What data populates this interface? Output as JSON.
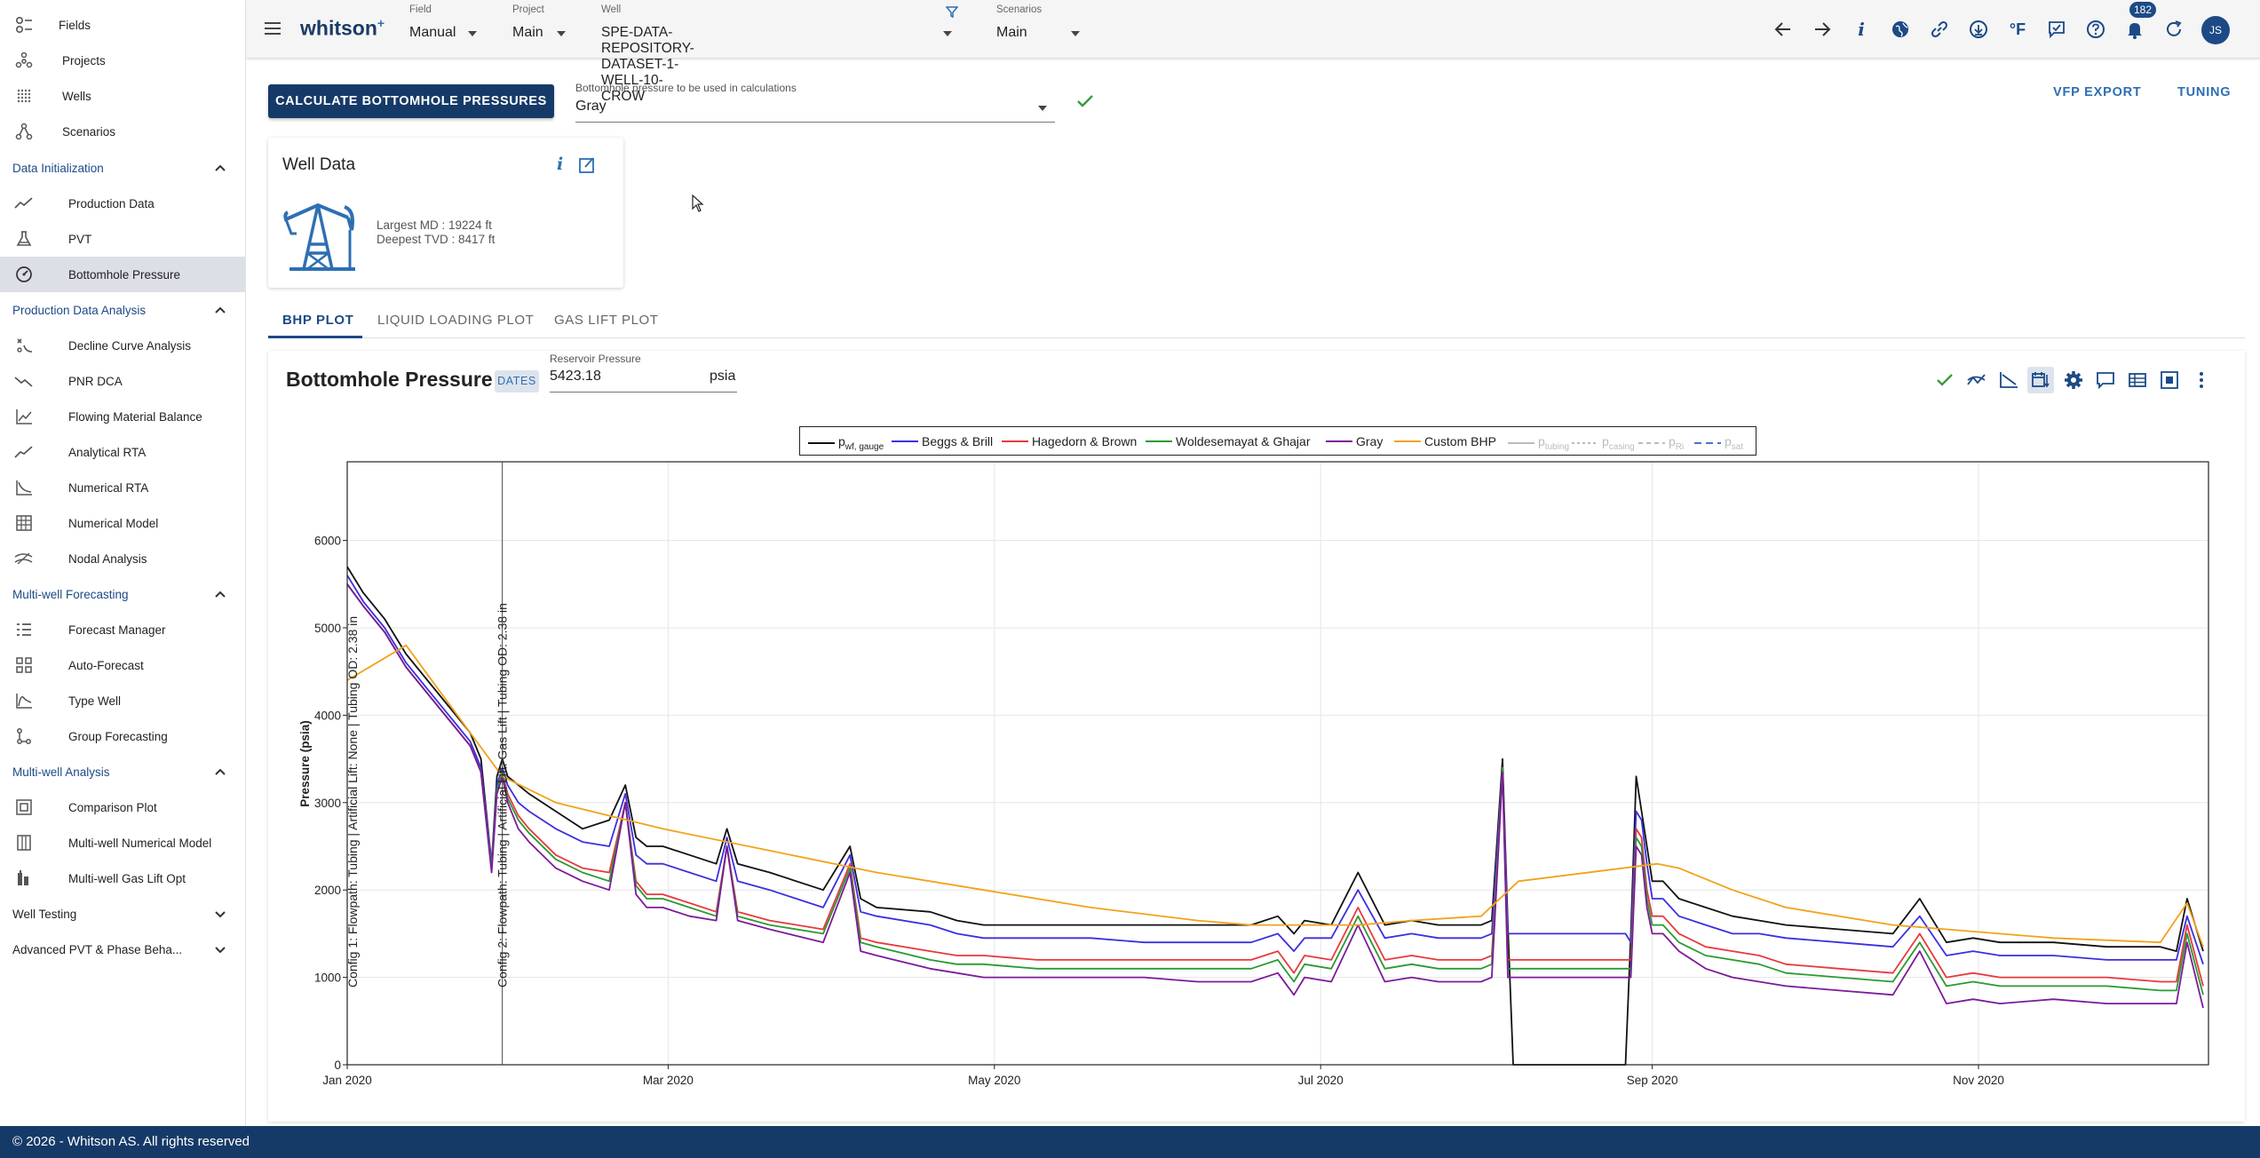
{
  "sidebar": {
    "top_items": [
      {
        "label": "Fields",
        "icon": "fields-icon"
      },
      {
        "label": "Projects",
        "icon": "projects-icon"
      },
      {
        "label": "Wells",
        "icon": "wells-icon"
      },
      {
        "label": "Scenarios",
        "icon": "scenarios-icon"
      }
    ],
    "sections": [
      {
        "title": "Data Initialization",
        "expanded": true,
        "items": [
          {
            "label": "Production Data",
            "icon": "production-data-icon"
          },
          {
            "label": "PVT",
            "icon": "pvt-flask-icon"
          },
          {
            "label": "Bottomhole Pressure",
            "icon": "gauge-icon",
            "active": true
          }
        ]
      },
      {
        "title": "Production Data Analysis",
        "expanded": true,
        "items": [
          {
            "label": "Decline Curve Analysis",
            "icon": "decline-curve-icon"
          },
          {
            "label": "PNR DCA",
            "icon": "pnr-dca-icon"
          },
          {
            "label": "Flowing Material Balance",
            "icon": "material-balance-icon"
          },
          {
            "label": "Analytical RTA",
            "icon": "analytical-rta-icon"
          },
          {
            "label": "Numerical RTA",
            "icon": "numerical-rta-icon"
          },
          {
            "label": "Numerical Model",
            "icon": "numerical-model-icon"
          },
          {
            "label": "Nodal Analysis",
            "icon": "nodal-analysis-icon"
          }
        ]
      },
      {
        "title": "Multi-well Forecasting",
        "expanded": true,
        "items": [
          {
            "label": "Forecast Manager",
            "icon": "forecast-manager-icon"
          },
          {
            "label": "Auto-Forecast",
            "icon": "auto-forecast-icon"
          },
          {
            "label": "Type Well",
            "icon": "type-well-icon"
          },
          {
            "label": "Group Forecasting",
            "icon": "group-forecasting-icon"
          }
        ]
      },
      {
        "title": "Multi-well Analysis",
        "expanded": true,
        "items": [
          {
            "label": "Comparison Plot",
            "icon": "comparison-plot-icon"
          },
          {
            "label": "Multi-well Numerical Model",
            "icon": "multiwell-model-icon"
          },
          {
            "label": "Multi-well Gas Lift Opt",
            "icon": "gas-lift-opt-icon"
          }
        ]
      },
      {
        "title": "Well Testing",
        "expanded": false,
        "items": []
      },
      {
        "title": "Advanced PVT & Phase Beha...",
        "expanded": false,
        "items": []
      }
    ]
  },
  "topbar": {
    "logo": "whitson",
    "logo_sup": "+",
    "field_label": "Field",
    "field_value": "Manual",
    "project_label": "Project",
    "project_value": "Main",
    "well_label": "Well",
    "well_value": "SPE-DATA-REPOSITORY-DATASET-1-WELL-10-CROW",
    "scenarios_label": "Scenarios",
    "scenarios_value": "Main",
    "notification_count": "182",
    "avatar_initials": "JS",
    "temperature_unit": "°F"
  },
  "actions": {
    "calculate_label": "CALCULATE BOTTOMHOLE PRESSURES",
    "bhp_select_label": "Bottomhole pressure to be used in calculations",
    "bhp_select_value": "Gray",
    "vfp_export": "VFP EXPORT",
    "tuning": "TUNING"
  },
  "well_card": {
    "title": "Well Data",
    "largest_md": "Largest MD :  19224 ft",
    "deepest_tvd": "Deepest TVD :  8417 ft"
  },
  "tabs": [
    "BHP PLOT",
    "LIQUID LOADING PLOT",
    "GAS LIFT PLOT"
  ],
  "plot_header": {
    "title": "Bottomhole Pressure",
    "dates_badge": "DATES",
    "reservoir_label": "Reservoir Pressure",
    "reservoir_value": "5423.18",
    "reservoir_unit": "psia"
  },
  "footer": "© 2026 - Whitson AS. All rights reserved",
  "chart_data": {
    "type": "line",
    "ylabel": "Pressure (psia)",
    "ylim": [
      0,
      6900
    ],
    "yticks": [
      0,
      1000,
      2000,
      3000,
      4000,
      5000,
      6000
    ],
    "x_start": "2020-01-01",
    "x_end": "2020-12-14",
    "xticks": [
      {
        "date": "2020-01-01",
        "label": "Jan 2020"
      },
      {
        "date": "2020-03-01",
        "label": "Mar 2020"
      },
      {
        "date": "2020-05-01",
        "label": "May 2020"
      },
      {
        "date": "2020-07-01",
        "label": "Jul 2020"
      },
      {
        "date": "2020-09-01",
        "label": "Sep 2020"
      },
      {
        "date": "2020-11-01",
        "label": "Nov 2020"
      }
    ],
    "grid": true,
    "legend_position": "top",
    "legend": [
      {
        "name": "pwf, gauge",
        "sub": "wf, gauge",
        "color": "#111111",
        "dash": ""
      },
      {
        "name": "Beggs & Brill",
        "color": "#3b2fe0",
        "dash": ""
      },
      {
        "name": "Hagedorn & Brown",
        "color": "#e8393d",
        "dash": ""
      },
      {
        "name": "Woldesemayat & Ghajar",
        "color": "#2a9a33",
        "dash": ""
      },
      {
        "name": "Gray",
        "color": "#7d1a9b",
        "dash": ""
      },
      {
        "name": "Custom BHP",
        "color": "#f2a21a",
        "dash": ""
      },
      {
        "name": "ptubing",
        "sub": "tubing",
        "color": "#bbbbbb",
        "dash": "",
        "faded": true
      },
      {
        "name": "pcasing",
        "sub": "casing",
        "color": "#bbbbbb",
        "dash": "3,3",
        "faded": true
      },
      {
        "name": "pRi",
        "sub": "Ri",
        "color": "#bbbbbb",
        "dash": "5,4",
        "faded": true
      },
      {
        "name": "psat",
        "sub": "sat",
        "color": "#4a76c7",
        "dash": "8,5",
        "faded": true
      }
    ],
    "annotations": [
      {
        "date": "2020-01-02",
        "text": "Config 1: Flowpath: Tubing | Artificial Lift: None | Tubing OD: 2.38 in"
      },
      {
        "date": "2020-01-30",
        "text": "Config 2: Flowpath: Tubing | Artificial Lift: Gas Lift | Tubing OD: 2.38 in"
      }
    ],
    "series": [
      {
        "name": "pwf, gauge",
        "color": "#111111",
        "x": [
          1,
          4,
          8,
          12,
          16,
          20,
          24,
          26,
          28,
          29,
          30,
          31,
          33,
          35,
          40,
          45,
          50,
          53,
          55,
          57,
          60,
          65,
          70,
          72,
          74,
          80,
          90,
          95,
          97,
          100,
          110,
          115,
          120,
          130,
          140,
          150,
          160,
          170,
          175,
          178,
          180,
          185,
          190,
          195,
          200,
          205,
          210,
          213,
          215,
          217,
          218,
          219,
          220,
          221,
          240,
          241,
          242,
          243,
          244,
          245,
          247,
          250,
          255,
          260,
          265,
          270,
          280,
          290,
          295,
          300,
          305,
          310,
          320,
          330,
          340,
          343,
          345,
          348
        ],
        "y": [
          5700,
          5400,
          5100,
          4700,
          4400,
          4100,
          3800,
          3500,
          2300,
          3300,
          3500,
          3300,
          3200,
          3100,
          2900,
          2700,
          2800,
          3200,
          2600,
          2500,
          2500,
          2400,
          2300,
          2700,
          2300,
          2200,
          2000,
          2500,
          1900,
          1800,
          1750,
          1650,
          1600,
          1600,
          1600,
          1600,
          1600,
          1600,
          1700,
          1500,
          1650,
          1600,
          2200,
          1600,
          1650,
          1600,
          1600,
          1600,
          1650,
          3500,
          1600,
          0,
          0,
          0,
          0,
          1500,
          3300,
          2900,
          2500,
          2100,
          2100,
          1900,
          1800,
          1700,
          1650,
          1600,
          1550,
          1500,
          1900,
          1400,
          1450,
          1400,
          1400,
          1350,
          1350,
          1300,
          1900,
          1300
        ]
      },
      {
        "name": "Beggs & Brill",
        "color": "#3b2fe0",
        "x": [
          1,
          4,
          8,
          12,
          16,
          20,
          24,
          26,
          28,
          29,
          30,
          31,
          33,
          35,
          40,
          45,
          50,
          53,
          55,
          57,
          60,
          65,
          70,
          72,
          74,
          80,
          90,
          95,
          97,
          100,
          110,
          115,
          120,
          130,
          140,
          150,
          160,
          170,
          175,
          178,
          180,
          185,
          190,
          195,
          200,
          205,
          210,
          213,
          215,
          217,
          218,
          219,
          220,
          240,
          241,
          242,
          243,
          244,
          245,
          247,
          250,
          255,
          260,
          265,
          270,
          280,
          290,
          295,
          300,
          305,
          310,
          320,
          330,
          340,
          343,
          345,
          348
        ],
        "y": [
          5600,
          5300,
          5000,
          4600,
          4300,
          4000,
          3700,
          3400,
          2300,
          3200,
          3400,
          3200,
          3000,
          2900,
          2700,
          2550,
          2500,
          3100,
          2400,
          2300,
          2300,
          2200,
          2100,
          2600,
          2100,
          2000,
          1800,
          2400,
          1750,
          1700,
          1600,
          1500,
          1450,
          1450,
          1450,
          1400,
          1400,
          1400,
          1500,
          1300,
          1450,
          1450,
          2000,
          1450,
          1500,
          1450,
          1450,
          1450,
          1500,
          3400,
          1500,
          1500,
          1500,
          1500,
          1400,
          2900,
          2800,
          2300,
          1900,
          1900,
          1700,
          1600,
          1500,
          1500,
          1450,
          1400,
          1350,
          1700,
          1250,
          1300,
          1250,
          1250,
          1200,
          1200,
          1200,
          1700,
          1150
        ]
      },
      {
        "name": "Hagedorn & Brown",
        "color": "#e8393d",
        "x": [
          1,
          4,
          8,
          12,
          16,
          20,
          24,
          26,
          28,
          29,
          30,
          31,
          33,
          35,
          40,
          45,
          50,
          53,
          55,
          57,
          60,
          65,
          70,
          72,
          74,
          80,
          90,
          95,
          97,
          100,
          110,
          115,
          120,
          130,
          140,
          150,
          160,
          170,
          175,
          178,
          180,
          185,
          190,
          195,
          200,
          205,
          210,
          213,
          215,
          217,
          218,
          219,
          220,
          240,
          241,
          242,
          243,
          244,
          245,
          247,
          250,
          255,
          260,
          265,
          270,
          280,
          290,
          295,
          300,
          305,
          310,
          320,
          330,
          340,
          343,
          345,
          348
        ],
        "y": [
          5500,
          5250,
          4950,
          4550,
          4250,
          3950,
          3650,
          3350,
          2250,
          3150,
          3350,
          3100,
          2850,
          2700,
          2400,
          2250,
          2200,
          3000,
          2100,
          1950,
          1950,
          1850,
          1750,
          2500,
          1750,
          1650,
          1550,
          2300,
          1450,
          1400,
          1300,
          1250,
          1250,
          1200,
          1200,
          1200,
          1200,
          1200,
          1300,
          1050,
          1250,
          1200,
          1800,
          1200,
          1250,
          1200,
          1200,
          1200,
          1250,
          3400,
          1200,
          1200,
          1200,
          1200,
          1200,
          2700,
          2600,
          2000,
          1700,
          1700,
          1500,
          1350,
          1300,
          1250,
          1150,
          1100,
          1050,
          1500,
          1000,
          1050,
          1000,
          1000,
          1000,
          950,
          950,
          1600,
          900
        ]
      },
      {
        "name": "Woldesemayat & Ghajar",
        "color": "#2a9a33",
        "x": [
          1,
          4,
          8,
          12,
          16,
          20,
          24,
          26,
          28,
          29,
          30,
          31,
          33,
          35,
          40,
          45,
          50,
          53,
          55,
          57,
          60,
          65,
          70,
          72,
          74,
          80,
          90,
          95,
          97,
          100,
          110,
          115,
          120,
          130,
          140,
          150,
          160,
          170,
          175,
          178,
          180,
          185,
          190,
          195,
          200,
          205,
          210,
          213,
          215,
          217,
          218,
          219,
          220,
          240,
          241,
          242,
          243,
          244,
          245,
          247,
          250,
          255,
          260,
          265,
          270,
          280,
          290,
          295,
          300,
          305,
          310,
          320,
          330,
          340,
          343,
          345,
          348
        ],
        "y": [
          5500,
          5250,
          4950,
          4550,
          4250,
          3950,
          3650,
          3350,
          2250,
          3150,
          3350,
          3050,
          2800,
          2650,
          2350,
          2200,
          2100,
          3000,
          2050,
          1900,
          1900,
          1800,
          1700,
          2500,
          1700,
          1600,
          1500,
          2250,
          1400,
          1350,
          1200,
          1150,
          1150,
          1100,
          1100,
          1100,
          1100,
          1100,
          1200,
          950,
          1150,
          1100,
          1700,
          1100,
          1150,
          1100,
          1100,
          1100,
          1150,
          3400,
          1100,
          1100,
          1100,
          1100,
          1100,
          2600,
          2500,
          1900,
          1600,
          1600,
          1400,
          1250,
          1200,
          1150,
          1050,
          1000,
          950,
          1400,
          900,
          950,
          900,
          900,
          900,
          850,
          850,
          1500,
          800
        ]
      },
      {
        "name": "Gray",
        "color": "#7d1a9b",
        "x": [
          1,
          4,
          8,
          12,
          16,
          20,
          24,
          26,
          28,
          29,
          30,
          31,
          33,
          35,
          40,
          45,
          50,
          53,
          55,
          57,
          60,
          65,
          70,
          72,
          74,
          80,
          90,
          95,
          97,
          100,
          110,
          115,
          120,
          130,
          140,
          150,
          160,
          170,
          175,
          178,
          180,
          185,
          190,
          195,
          200,
          205,
          210,
          213,
          215,
          217,
          218,
          219,
          220,
          240,
          241,
          242,
          243,
          244,
          245,
          247,
          250,
          255,
          260,
          265,
          270,
          280,
          290,
          295,
          300,
          305,
          310,
          320,
          330,
          340,
          343,
          345,
          348
        ],
        "y": [
          5500,
          5250,
          4950,
          4550,
          4250,
          3950,
          3650,
          3350,
          2200,
          3100,
          3300,
          3000,
          2700,
          2550,
          2250,
          2100,
          2000,
          3000,
          1950,
          1800,
          1800,
          1700,
          1650,
          2500,
          1650,
          1550,
          1400,
          2200,
          1300,
          1250,
          1100,
          1050,
          1000,
          1000,
          1000,
          1000,
          950,
          950,
          1050,
          800,
          1000,
          950,
          1600,
          950,
          1000,
          950,
          950,
          950,
          1000,
          3350,
          1000,
          1000,
          1000,
          1000,
          1000,
          2500,
          2400,
          1800,
          1500,
          1500,
          1300,
          1100,
          1000,
          950,
          900,
          850,
          800,
          1300,
          700,
          750,
          700,
          750,
          700,
          700,
          700,
          1400,
          650
        ]
      },
      {
        "name": "Custom BHP",
        "color": "#f2a21a",
        "x": [
          1,
          12,
          24,
          30,
          40,
          60,
          80,
          100,
          120,
          140,
          160,
          170,
          190,
          200,
          213,
          220,
          246,
          250,
          260,
          270,
          290,
          300,
          320,
          340,
          345,
          348
        ],
        "y": [
          4400,
          4800,
          3800,
          3300,
          3000,
          2700,
          2450,
          2200,
          2000,
          1800,
          1650,
          1600,
          1600,
          1650,
          1700,
          2100,
          2300,
          2250,
          2000,
          1800,
          1600,
          1550,
          1450,
          1400,
          1850,
          1350
        ]
      }
    ]
  }
}
